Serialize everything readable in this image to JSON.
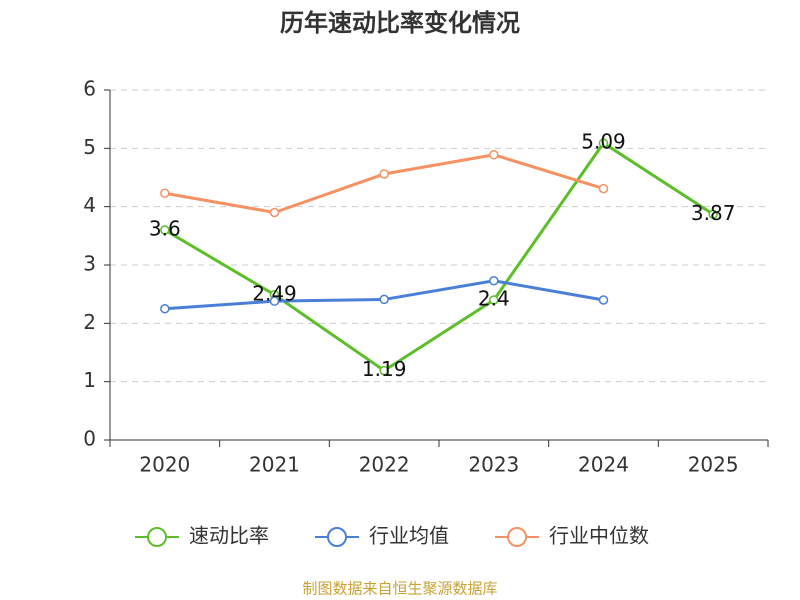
{
  "chart_data": {
    "type": "line",
    "title": "历年速动比率变化情况",
    "categories": [
      "2020",
      "2021",
      "2022",
      "2023",
      "2024",
      "2025"
    ],
    "series": [
      {
        "name": "速动比率",
        "color": "#5cbf2a",
        "values": [
          3.6,
          2.49,
          1.19,
          2.4,
          5.09,
          3.87
        ],
        "show_labels": true
      },
      {
        "name": "行业均值",
        "color": "#4a7fd8",
        "values": [
          2.25,
          2.38,
          2.41,
          2.73,
          2.4,
          null
        ],
        "show_labels": false
      },
      {
        "name": "行业中位数",
        "color": "#f59162",
        "values": [
          4.23,
          3.9,
          4.56,
          4.89,
          4.31,
          null
        ],
        "show_labels": false
      }
    ],
    "ylim": [
      0,
      6
    ],
    "yticks": [
      0,
      1,
      2,
      3,
      4,
      5,
      6
    ],
    "grid": true,
    "legend": "bottom",
    "source": "制图数据来自恒生聚源数据库"
  }
}
